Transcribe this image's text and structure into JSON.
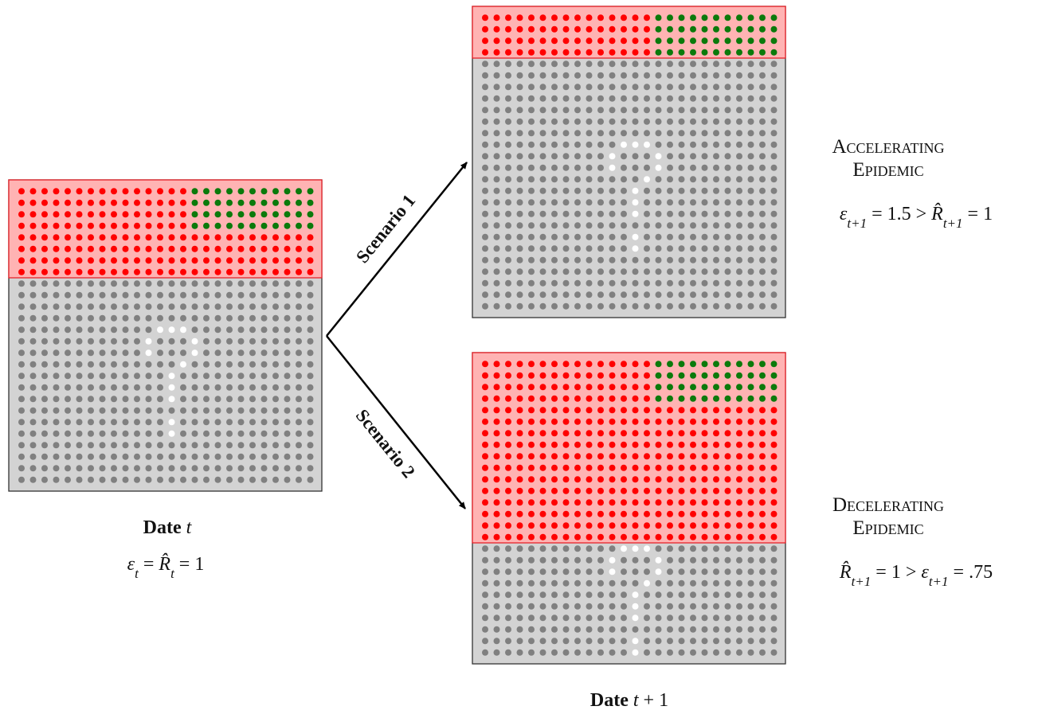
{
  "left": {
    "date": [
      {
        "text": "Date",
        "style": "bold"
      },
      {
        "text": " "
      },
      {
        "text": "t",
        "style": "italic"
      }
    ],
    "formula": [
      {
        "text": "ε",
        "style": "italic"
      },
      {
        "text": "t",
        "style": "sub"
      },
      {
        "text": " = "
      },
      {
        "text": "R̂",
        "style": "italic"
      },
      {
        "text": "t",
        "style": "sub"
      },
      {
        "text": " = 1"
      }
    ]
  },
  "scenarios": [
    "Scenario 1",
    "Scenario 2"
  ],
  "right": [
    {
      "title": [
        "Accelerating",
        "Epidemic"
      ],
      "formula": [
        {
          "text": "ε",
          "style": "italic"
        },
        {
          "text": "t+1",
          "style": "sub"
        },
        {
          "text": " = 1.5 > "
        },
        {
          "text": "R̂",
          "style": "italic"
        },
        {
          "text": "t+1",
          "style": "sub"
        },
        {
          "text": " = 1"
        }
      ]
    },
    {
      "title": [
        "Decelerating",
        "Epidemic"
      ],
      "formula": [
        {
          "text": "R̂",
          "style": "italic"
        },
        {
          "text": "t+1",
          "style": "sub"
        },
        {
          "text": " = 1 > "
        },
        {
          "text": "ε",
          "style": "italic"
        },
        {
          "text": "t+1",
          "style": "sub"
        },
        {
          "text": " = .75"
        }
      ]
    }
  ],
  "right_date": [
    {
      "text": "Date",
      "style": "bold"
    },
    {
      "text": " "
    },
    {
      "text": "t",
      "style": "italic"
    },
    {
      "text": " + 1"
    }
  ]
}
